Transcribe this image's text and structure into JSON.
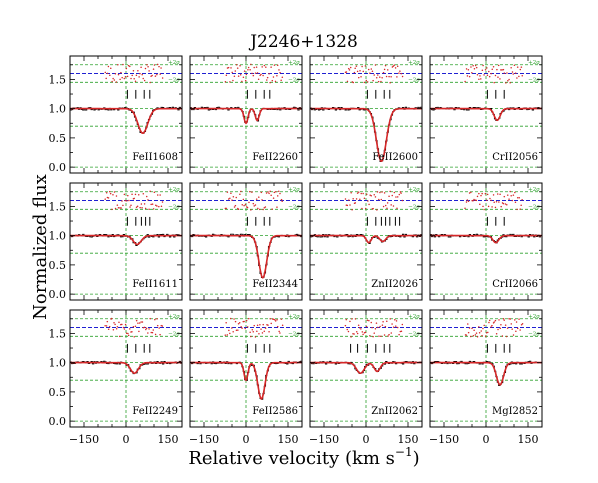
{
  "chart_data": {
    "type": "line",
    "title": "J2246+1328",
    "xlabel": "Relative velocity (km s",
    "xlabel_sup": "−1",
    "xlabel_tail": ")",
    "ylabel": "Normalized flux",
    "xlim": [
      -200,
      200
    ],
    "ylim": [
      -0.1,
      1.9
    ],
    "x_ticks": [
      "−150",
      "0",
      "150"
    ],
    "y_ticks": [
      "0.0",
      "0.5",
      "1.0",
      "1.5"
    ],
    "residual_labels": {
      "plus": "+2σ",
      "minus": "−2σ"
    },
    "grid_rows": 3,
    "grid_cols": 4,
    "colors": {
      "data": "#000000",
      "model": "#d62728",
      "residual": "#d62728",
      "blue_line": "#0000cc",
      "green_line": "#2ca02c",
      "bad_pixels": "#888888"
    },
    "panels": [
      {
        "label": "FeII1608",
        "components": [
          5,
          35,
          65,
          85
        ],
        "lines": [
          {
            "v": 60,
            "depth": 0.42,
            "width": 25
          }
        ]
      },
      {
        "label": "FeII2260",
        "components": [
          5,
          35,
          65,
          85
        ],
        "lines": [
          {
            "v": 0,
            "depth": 0.25,
            "width": 10
          },
          {
            "v": 40,
            "depth": 0.2,
            "width": 10
          }
        ]
      },
      {
        "label": "FeII2600",
        "components": [
          5,
          35,
          65,
          85
        ],
        "lines": [
          {
            "v": 55,
            "depth": 0.9,
            "width": 25
          }
        ]
      },
      {
        "label": "CrII2056",
        "components": [
          5,
          35,
          65
        ],
        "lines": [
          {
            "v": 40,
            "depth": 0.2,
            "width": 15
          }
        ]
      },
      {
        "label": "FeII1611",
        "components": [
          5,
          35,
          55,
          70,
          85
        ],
        "lines": [
          {
            "v": 40,
            "depth": 0.15,
            "width": 20
          }
        ]
      },
      {
        "label": "FeII2344",
        "components": [
          5,
          35,
          65,
          85
        ],
        "lines": [
          {
            "v": 60,
            "depth": 0.72,
            "width": 20
          }
        ]
      },
      {
        "label": "ZnII2026",
        "components": [
          5,
          35,
          55,
          70,
          85,
          105,
          120
        ],
        "lines": [
          {
            "v": 10,
            "depth": 0.12,
            "width": 12
          },
          {
            "v": 60,
            "depth": 0.1,
            "width": 15
          }
        ]
      },
      {
        "label": "CrII2066",
        "components": [
          5,
          35,
          65
        ],
        "lines": [
          {
            "v": 35,
            "depth": 0.12,
            "width": 15
          }
        ]
      },
      {
        "label": "FeII2249",
        "components": [
          5,
          35,
          65,
          85
        ],
        "lines": [
          {
            "v": 30,
            "depth": 0.18,
            "width": 20
          }
        ]
      },
      {
        "label": "FeII2586",
        "components": [
          5,
          35,
          65,
          85
        ],
        "lines": [
          {
            "v": 0,
            "depth": 0.3,
            "width": 10
          },
          {
            "v": 55,
            "depth": 0.62,
            "width": 18
          }
        ]
      },
      {
        "label": "ZnII2062",
        "components": [
          -55,
          -30,
          5,
          35,
          65,
          85
        ],
        "lines": [
          {
            "v": -20,
            "depth": 0.18,
            "width": 20
          },
          {
            "v": 40,
            "depth": 0.15,
            "width": 15
          }
        ]
      },
      {
        "label": "MgI2852",
        "components": [
          5,
          35,
          65,
          85
        ],
        "lines": [
          {
            "v": 50,
            "depth": 0.38,
            "width": 18
          }
        ]
      }
    ]
  }
}
